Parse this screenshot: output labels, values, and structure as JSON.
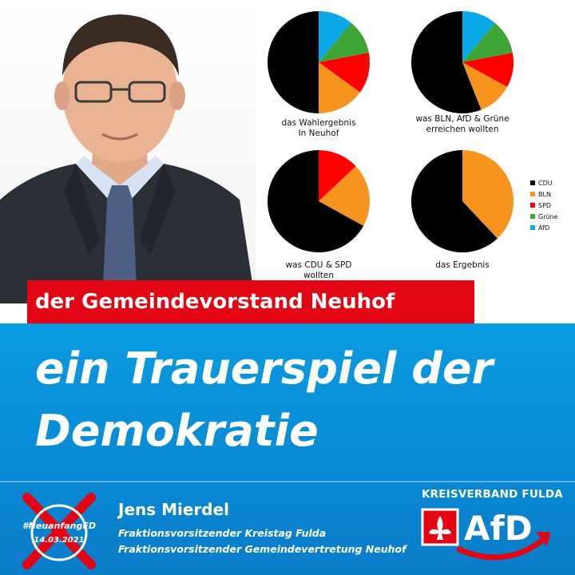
{
  "pies": [
    {
      "caption_line1": "das Wahlergebnis",
      "caption_line2": "In Neuhof",
      "slices": [
        {
          "party": "CDU",
          "value": 50
        },
        {
          "party": "BLN",
          "value": 15
        },
        {
          "party": "SPD",
          "value": 13
        },
        {
          "party": "Grüne",
          "value": 11
        },
        {
          "party": "AfD",
          "value": 11
        }
      ]
    },
    {
      "caption_line1": "was BLN, AfD & Grüne",
      "caption_line2": "erreichen wollten",
      "slices": [
        {
          "party": "CDU",
          "value": 56
        },
        {
          "party": "BLN",
          "value": 11
        },
        {
          "party": "SPD",
          "value": 11
        },
        {
          "party": "Grüne",
          "value": 11
        },
        {
          "party": "AfD",
          "value": 11
        }
      ]
    },
    {
      "caption_line1": "was CDU & SPD",
      "caption_line2": "wollten",
      "slices": [
        {
          "party": "CDU",
          "value": 67
        },
        {
          "party": "BLN",
          "value": 20
        },
        {
          "party": "SPD",
          "value": 13
        }
      ]
    },
    {
      "caption_line1": "das Ergebnis",
      "caption_line2": "",
      "slices": [
        {
          "party": "CDU",
          "value": 62
        },
        {
          "party": "BLN",
          "value": 38
        }
      ]
    }
  ],
  "legend": [
    {
      "label": "CDU",
      "color": "#000000"
    },
    {
      "label": "BLN",
      "color": "#f7941d"
    },
    {
      "label": "SPD",
      "color": "#ff0000"
    },
    {
      "label": "Grüne",
      "color": "#3fa535"
    },
    {
      "label": "AfD",
      "color": "#0aa8e6"
    }
  ],
  "banner": "der Gemeindevorstand Neuhof",
  "headline_line1": "ein Trauerspiel der",
  "headline_line2": "Demokratie",
  "person_name": "Jens Mierdel",
  "role_line1": "Fraktionsvorsitzender Kreistag Fulda",
  "role_line2": "Fraktionsvorsitzender Gemeindevertretung Neuhof",
  "badge_hashtag": "#NeuanfangFD",
  "badge_date": "14.03.2021",
  "kreisverband": "KREISVERBAND FULDA",
  "afd_wordmark": "AfD",
  "colors": {
    "red": "#e30513",
    "blue": "#0a9be0",
    "black": "#000000"
  }
}
